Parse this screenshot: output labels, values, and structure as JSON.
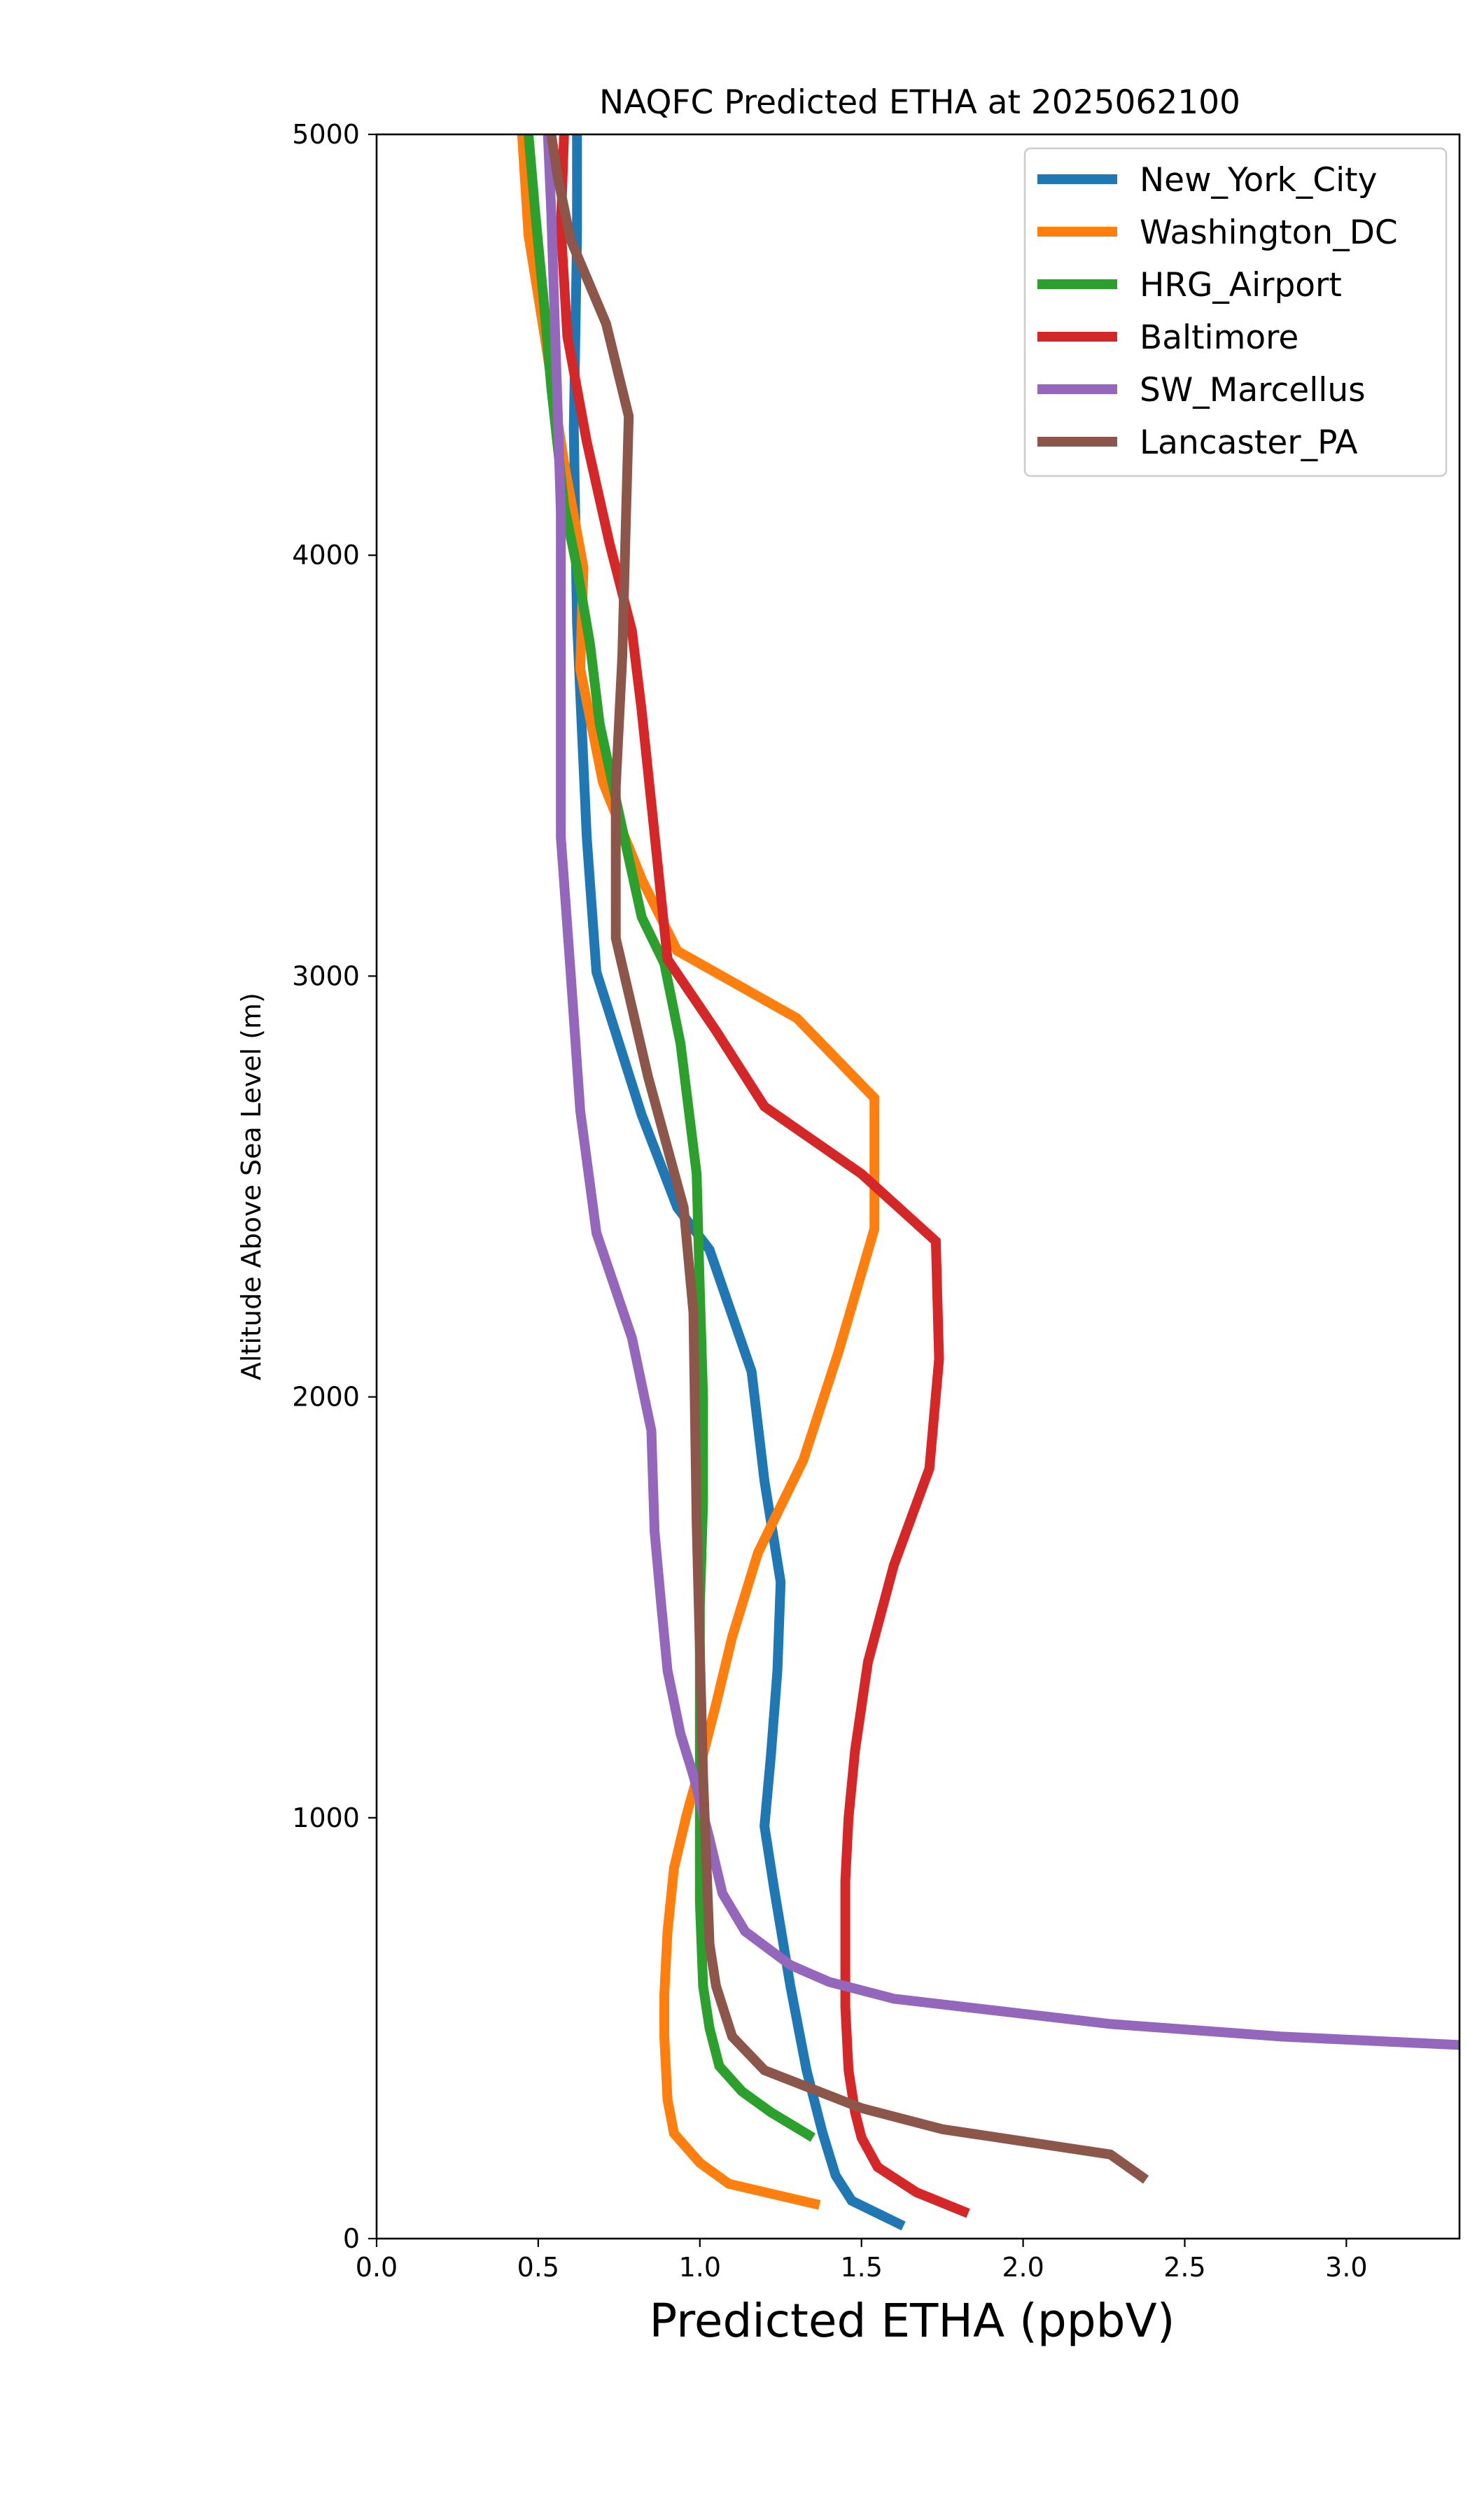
{
  "chart_data": {
    "type": "line",
    "title": "NAQFC Predicted ETHA at 2025062100",
    "xlabel": "Predicted ETHA (ppbV)",
    "ylabel": "Altitude Above Sea Level (m)",
    "xlim": [
      0.0,
      3.35
    ],
    "ylim": [
      0,
      5000
    ],
    "xticks": [
      "0.0",
      "0.5",
      "1.0",
      "1.5",
      "2.0",
      "2.5",
      "3.0"
    ],
    "xtick_values": [
      0.0,
      0.5,
      1.0,
      1.5,
      2.0,
      2.5,
      3.0
    ],
    "yticks": [
      "0",
      "1000",
      "2000",
      "3000",
      "4000",
      "5000"
    ],
    "ytick_values": [
      0,
      1000,
      2000,
      3000,
      4000,
      5000
    ],
    "grid": false,
    "legend_position": "top-right",
    "series": [
      {
        "name": "New_York_City",
        "color": "#1f77b4",
        "points": [
          [
            1.63,
            30
          ],
          [
            1.47,
            90
          ],
          [
            1.42,
            150
          ],
          [
            1.38,
            250
          ],
          [
            1.33,
            400
          ],
          [
            1.28,
            600
          ],
          [
            1.23,
            830
          ],
          [
            1.2,
            980
          ],
          [
            1.22,
            1150
          ],
          [
            1.24,
            1350
          ],
          [
            1.25,
            1560
          ],
          [
            1.2,
            1800
          ],
          [
            1.16,
            2060
          ],
          [
            1.03,
            2350
          ],
          [
            0.93,
            2450
          ],
          [
            0.82,
            2670
          ],
          [
            0.68,
            3010
          ],
          [
            0.65,
            3330
          ],
          [
            0.62,
            3840
          ],
          [
            0.61,
            4300
          ],
          [
            0.62,
            4760
          ],
          [
            0.62,
            5000
          ]
        ]
      },
      {
        "name": "Washington_DC",
        "color": "#ff7f0e",
        "points": [
          [
            1.37,
            80
          ],
          [
            1.09,
            130
          ],
          [
            1.0,
            180
          ],
          [
            0.92,
            250
          ],
          [
            0.9,
            330
          ],
          [
            0.89,
            480
          ],
          [
            0.89,
            580
          ],
          [
            0.9,
            730
          ],
          [
            0.92,
            880
          ],
          [
            0.96,
            1010
          ],
          [
            1.0,
            1120
          ],
          [
            1.05,
            1270
          ],
          [
            1.1,
            1430
          ],
          [
            1.18,
            1630
          ],
          [
            1.32,
            1850
          ],
          [
            1.43,
            2110
          ],
          [
            1.54,
            2400
          ],
          [
            1.54,
            2710
          ],
          [
            1.3,
            2900
          ],
          [
            0.93,
            3060
          ],
          [
            0.82,
            3230
          ],
          [
            0.7,
            3460
          ],
          [
            0.63,
            3730
          ],
          [
            0.64,
            3970
          ],
          [
            0.58,
            4220
          ],
          [
            0.52,
            4520
          ],
          [
            0.47,
            4760
          ],
          [
            0.45,
            5000
          ]
        ]
      },
      {
        "name": "HRG_Airport",
        "color": "#2ca02c",
        "points": [
          [
            1.35,
            240
          ],
          [
            1.22,
            300
          ],
          [
            1.13,
            350
          ],
          [
            1.06,
            410
          ],
          [
            1.03,
            500
          ],
          [
            1.01,
            600
          ],
          [
            1.0,
            800
          ],
          [
            1.0,
            1000
          ],
          [
            1.0,
            1250
          ],
          [
            1.0,
            1500
          ],
          [
            1.01,
            1750
          ],
          [
            1.01,
            2000
          ],
          [
            1.0,
            2250
          ],
          [
            0.99,
            2530
          ],
          [
            0.94,
            2840
          ],
          [
            0.89,
            3030
          ],
          [
            0.82,
            3140
          ],
          [
            0.76,
            3350
          ],
          [
            0.69,
            3600
          ],
          [
            0.66,
            3790
          ],
          [
            0.62,
            3970
          ],
          [
            0.58,
            4120
          ],
          [
            0.54,
            4400
          ],
          [
            0.52,
            4580
          ],
          [
            0.49,
            4820
          ],
          [
            0.47,
            5000
          ]
        ]
      },
      {
        "name": "Baltimore",
        "color": "#d62728",
        "points": [
          [
            1.83,
            60
          ],
          [
            1.67,
            110
          ],
          [
            1.55,
            170
          ],
          [
            1.5,
            240
          ],
          [
            1.48,
            300
          ],
          [
            1.46,
            400
          ],
          [
            1.45,
            550
          ],
          [
            1.45,
            700
          ],
          [
            1.45,
            850
          ],
          [
            1.46,
            1000
          ],
          [
            1.48,
            1160
          ],
          [
            1.52,
            1370
          ],
          [
            1.6,
            1600
          ],
          [
            1.71,
            1830
          ],
          [
            1.74,
            2090
          ],
          [
            1.73,
            2370
          ],
          [
            1.5,
            2530
          ],
          [
            1.2,
            2690
          ],
          [
            1.05,
            2870
          ],
          [
            0.9,
            3040
          ],
          [
            0.85,
            3410
          ],
          [
            0.82,
            3630
          ],
          [
            0.79,
            3820
          ],
          [
            0.72,
            4030
          ],
          [
            0.65,
            4270
          ],
          [
            0.59,
            4520
          ],
          [
            0.57,
            4780
          ],
          [
            0.58,
            5000
          ]
        ]
      },
      {
        "name": "SW_Marcellus",
        "color": "#9467bd",
        "points": [
          [
            3.35,
            460
          ],
          [
            2.8,
            480
          ],
          [
            2.27,
            510
          ],
          [
            1.6,
            570
          ],
          [
            1.4,
            610
          ],
          [
            1.28,
            650
          ],
          [
            1.14,
            730
          ],
          [
            1.07,
            820
          ],
          [
            1.03,
            950
          ],
          [
            0.98,
            1100
          ],
          [
            0.94,
            1200
          ],
          [
            0.9,
            1350
          ],
          [
            0.88,
            1510
          ],
          [
            0.86,
            1680
          ],
          [
            0.85,
            1920
          ],
          [
            0.79,
            2140
          ],
          [
            0.68,
            2390
          ],
          [
            0.63,
            2680
          ],
          [
            0.6,
            3010
          ],
          [
            0.57,
            3330
          ],
          [
            0.57,
            3590
          ],
          [
            0.57,
            3820
          ],
          [
            0.57,
            4100
          ],
          [
            0.56,
            4350
          ],
          [
            0.55,
            4580
          ],
          [
            0.54,
            4820
          ],
          [
            0.53,
            5000
          ]
        ]
      },
      {
        "name": "Lancaster_PA",
        "color": "#8c564b",
        "points": [
          [
            2.38,
            140
          ],
          [
            2.27,
            200
          ],
          [
            1.75,
            260
          ],
          [
            1.5,
            310
          ],
          [
            1.2,
            400
          ],
          [
            1.1,
            480
          ],
          [
            1.05,
            600
          ],
          [
            1.03,
            700
          ],
          [
            1.02,
            900
          ],
          [
            1.01,
            1100
          ],
          [
            1.0,
            1400
          ],
          [
            0.99,
            1700
          ],
          [
            0.98,
            2200
          ],
          [
            0.95,
            2450
          ],
          [
            0.84,
            2760
          ],
          [
            0.74,
            3090
          ],
          [
            0.74,
            3450
          ],
          [
            0.76,
            3760
          ],
          [
            0.77,
            4050
          ],
          [
            0.78,
            4330
          ],
          [
            0.71,
            4550
          ],
          [
            0.6,
            4750
          ],
          [
            0.56,
            4900
          ],
          [
            0.54,
            5000
          ]
        ]
      }
    ]
  }
}
